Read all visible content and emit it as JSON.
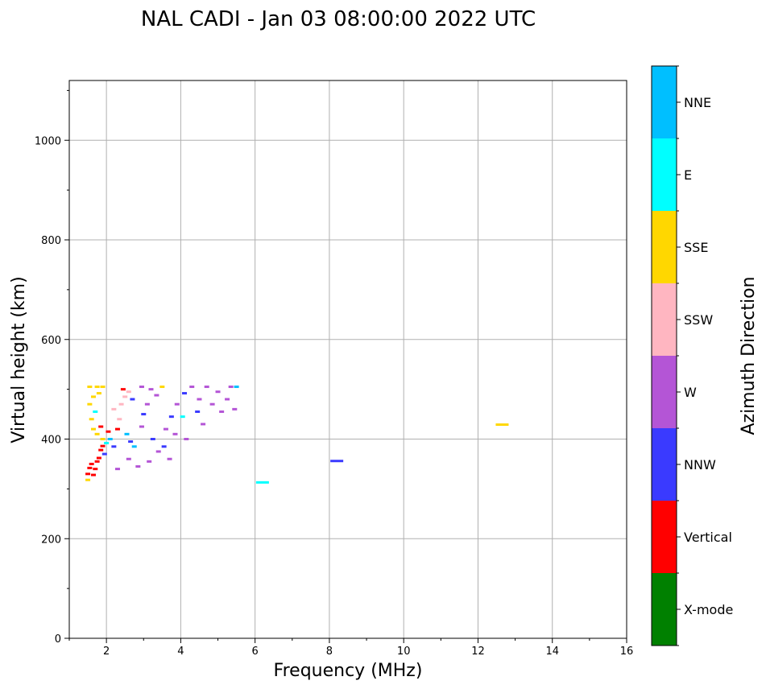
{
  "chart_data": {
    "type": "heatmap",
    "title": "NAL CADI - Jan 03 08:00:00 2022 UTC",
    "xlabel": "Frequency (MHz)",
    "ylabel": "Virtual height (km)",
    "xlim": [
      1,
      16
    ],
    "ylim": [
      0,
      1120
    ],
    "xticks": [
      2,
      4,
      6,
      8,
      10,
      12,
      14,
      16
    ],
    "yticks": [
      0,
      200,
      400,
      600,
      800,
      1000
    ],
    "grid": true,
    "colorbar": {
      "label": "Azimuth Direction",
      "categories": [
        "X-mode",
        "Vertical",
        "NNW",
        "W",
        "SSW",
        "SSE",
        "E",
        "NNE"
      ],
      "colors": [
        "#008000",
        "#ff0000",
        "#3a3aff",
        "#b455d6",
        "#ffb6c1",
        "#ffd700",
        "#00ffff",
        "#00bfff"
      ]
    },
    "points": [
      {
        "f": 1.5,
        "h": 318,
        "dir": "SSE"
      },
      {
        "f": 1.5,
        "h": 330,
        "dir": "Vertical"
      },
      {
        "f": 1.55,
        "h": 342,
        "dir": "Vertical"
      },
      {
        "f": 1.6,
        "h": 350,
        "dir": "Vertical"
      },
      {
        "f": 1.65,
        "h": 328,
        "dir": "Vertical"
      },
      {
        "f": 1.7,
        "h": 340,
        "dir": "Vertical"
      },
      {
        "f": 1.75,
        "h": 355,
        "dir": "Vertical"
      },
      {
        "f": 1.8,
        "h": 362,
        "dir": "Vertical"
      },
      {
        "f": 1.85,
        "h": 378,
        "dir": "Vertical"
      },
      {
        "f": 1.9,
        "h": 386,
        "dir": "Vertical"
      },
      {
        "f": 1.95,
        "h": 370,
        "dir": "NNW"
      },
      {
        "f": 2.0,
        "h": 392,
        "dir": "E"
      },
      {
        "f": 1.9,
        "h": 400,
        "dir": "SSE"
      },
      {
        "f": 1.75,
        "h": 410,
        "dir": "SSE"
      },
      {
        "f": 1.65,
        "h": 420,
        "dir": "SSE"
      },
      {
        "f": 1.85,
        "h": 425,
        "dir": "Vertical"
      },
      {
        "f": 1.6,
        "h": 440,
        "dir": "SSE"
      },
      {
        "f": 1.7,
        "h": 455,
        "dir": "E"
      },
      {
        "f": 1.55,
        "h": 470,
        "dir": "SSE"
      },
      {
        "f": 1.65,
        "h": 485,
        "dir": "SSE"
      },
      {
        "f": 1.8,
        "h": 492,
        "dir": "SSE"
      },
      {
        "f": 1.55,
        "h": 505,
        "dir": "SSE"
      },
      {
        "f": 1.75,
        "h": 505,
        "dir": "SSE"
      },
      {
        "f": 1.9,
        "h": 505,
        "dir": "SSE"
      },
      {
        "f": 2.05,
        "h": 415,
        "dir": "Vertical"
      },
      {
        "f": 2.1,
        "h": 400,
        "dir": "NNE"
      },
      {
        "f": 2.2,
        "h": 385,
        "dir": "NNW"
      },
      {
        "f": 2.3,
        "h": 420,
        "dir": "Vertical"
      },
      {
        "f": 2.35,
        "h": 440,
        "dir": "SSW"
      },
      {
        "f": 2.2,
        "h": 460,
        "dir": "SSW"
      },
      {
        "f": 2.4,
        "h": 470,
        "dir": "SSW"
      },
      {
        "f": 2.5,
        "h": 485,
        "dir": "SSW"
      },
      {
        "f": 2.45,
        "h": 500,
        "dir": "Vertical"
      },
      {
        "f": 2.6,
        "h": 495,
        "dir": "SSW"
      },
      {
        "f": 2.7,
        "h": 480,
        "dir": "NNW"
      },
      {
        "f": 2.55,
        "h": 410,
        "dir": "NNE"
      },
      {
        "f": 2.65,
        "h": 395,
        "dir": "NNW"
      },
      {
        "f": 2.75,
        "h": 385,
        "dir": "NNE"
      },
      {
        "f": 2.6,
        "h": 360,
        "dir": "W"
      },
      {
        "f": 2.85,
        "h": 345,
        "dir": "W"
      },
      {
        "f": 2.3,
        "h": 340,
        "dir": "W"
      },
      {
        "f": 2.95,
        "h": 425,
        "dir": "W"
      },
      {
        "f": 3.0,
        "h": 450,
        "dir": "NNW"
      },
      {
        "f": 3.1,
        "h": 470,
        "dir": "W"
      },
      {
        "f": 2.95,
        "h": 505,
        "dir": "W"
      },
      {
        "f": 3.2,
        "h": 500,
        "dir": "W"
      },
      {
        "f": 3.35,
        "h": 488,
        "dir": "W"
      },
      {
        "f": 3.5,
        "h": 505,
        "dir": "SSE"
      },
      {
        "f": 3.25,
        "h": 400,
        "dir": "NNW"
      },
      {
        "f": 3.4,
        "h": 375,
        "dir": "W"
      },
      {
        "f": 3.55,
        "h": 385,
        "dir": "NNW"
      },
      {
        "f": 3.7,
        "h": 360,
        "dir": "W"
      },
      {
        "f": 3.15,
        "h": 355,
        "dir": "W"
      },
      {
        "f": 3.6,
        "h": 420,
        "dir": "W"
      },
      {
        "f": 3.75,
        "h": 445,
        "dir": "NNW"
      },
      {
        "f": 3.85,
        "h": 410,
        "dir": "W"
      },
      {
        "f": 3.9,
        "h": 470,
        "dir": "W"
      },
      {
        "f": 4.05,
        "h": 445,
        "dir": "E"
      },
      {
        "f": 4.15,
        "h": 400,
        "dir": "W"
      },
      {
        "f": 4.1,
        "h": 492,
        "dir": "NNW"
      },
      {
        "f": 4.3,
        "h": 505,
        "dir": "W"
      },
      {
        "f": 4.5,
        "h": 480,
        "dir": "W"
      },
      {
        "f": 4.45,
        "h": 455,
        "dir": "NNW"
      },
      {
        "f": 4.6,
        "h": 430,
        "dir": "W"
      },
      {
        "f": 4.7,
        "h": 505,
        "dir": "W"
      },
      {
        "f": 4.85,
        "h": 470,
        "dir": "W"
      },
      {
        "f": 5.0,
        "h": 495,
        "dir": "W"
      },
      {
        "f": 5.1,
        "h": 455,
        "dir": "W"
      },
      {
        "f": 5.25,
        "h": 480,
        "dir": "W"
      },
      {
        "f": 5.35,
        "h": 505,
        "dir": "W"
      },
      {
        "f": 5.45,
        "h": 460,
        "dir": "W"
      },
      {
        "f": 5.5,
        "h": 505,
        "dir": "NNE"
      },
      {
        "f": 6.2,
        "h": 313,
        "dir": "E"
      },
      {
        "f": 8.2,
        "h": 356,
        "dir": "NNW"
      },
      {
        "f": 12.65,
        "h": 429,
        "dir": "SSE"
      }
    ]
  }
}
